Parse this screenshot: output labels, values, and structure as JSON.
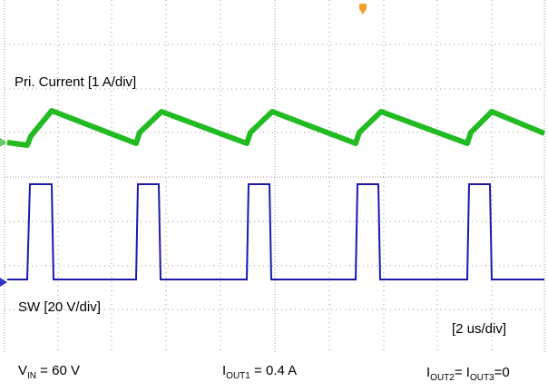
{
  "labels": {
    "current": "Pri. Current [1 A/div]",
    "switch": "SW [20 V/div]",
    "timebase": "[2 us/div]",
    "vin": {
      "main": "V",
      "sub": "IN",
      "rest": " = 60 V"
    },
    "iout1": {
      "main": "I",
      "sub": "OUT1",
      "rest": " = 0.4 A"
    },
    "iout23": {
      "main1": "I",
      "sub1": "OUT2",
      "mid": "= I",
      "sub2": "OUT3",
      "rest": "=0"
    }
  }
}
